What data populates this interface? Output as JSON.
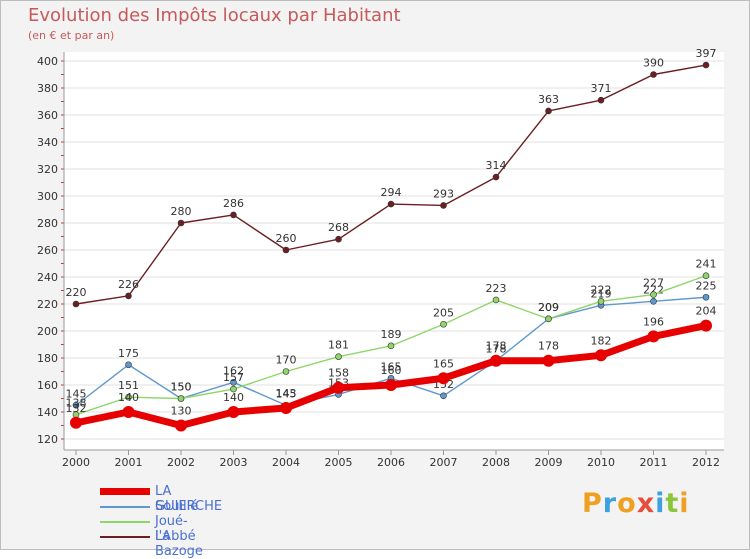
{
  "chart_data": {
    "type": "line",
    "title": "Evolution des Impôts locaux par Habitant",
    "subtitle": "(en € et par an)",
    "xlabel": "",
    "ylabel": "",
    "x": [
      "2000",
      "2001",
      "2002",
      "2003",
      "2004",
      "2005",
      "2006",
      "2007",
      "2008",
      "2009",
      "2010",
      "2011",
      "2012"
    ],
    "ylim": [
      120,
      400
    ],
    "yticks": [
      "120",
      "140",
      "160",
      "180",
      "200",
      "220",
      "240",
      "260",
      "280",
      "300",
      "320",
      "340",
      "360",
      "380",
      "400"
    ],
    "grid": true,
    "series": [
      {
        "name": "La Bazoge",
        "color": "#6b1f22",
        "values": [
          220,
          226,
          280,
          286,
          260,
          268,
          294,
          293,
          314,
          363,
          371,
          390,
          397
        ],
        "labels": [
          "220",
          "226",
          "280",
          "286",
          "260",
          "268",
          "294",
          "293",
          "314",
          "363",
          "371",
          "390",
          "397"
        ]
      },
      {
        "name": "Souillé",
        "color": "#5f98cc",
        "values": [
          145,
          175,
          150,
          162,
          145,
          153,
          165,
          152,
          178,
          209,
          219,
          222,
          225
        ],
        "labels": [
          "145",
          "175",
          "150",
          "162",
          "145",
          "153",
          "165",
          "152",
          "178",
          "209",
          "219",
          "222",
          "225"
        ]
      },
      {
        "name": "Joué-l'Abbé",
        "color": "#8ed66a",
        "values": [
          138,
          151,
          150,
          157,
          170,
          181,
          189,
          205,
          223,
          209,
          222,
          227,
          241
        ],
        "labels": [
          "138",
          "151",
          "150",
          "157",
          "170",
          "181",
          "189",
          "205",
          "223",
          "209",
          "222",
          "227",
          "241"
        ]
      },
      {
        "name": "LA GUIERCHE",
        "color": "#e60000",
        "values": [
          132,
          140,
          130,
          140,
          143,
          158,
          160,
          165,
          178,
          178,
          182,
          196,
          204
        ],
        "labels": [
          "132",
          "140",
          "130",
          "140",
          "143",
          "158",
          "160",
          "165",
          "178",
          "178",
          "182",
          "196",
          "204"
        ]
      }
    ],
    "legend": [
      "LA GUIERCHE",
      "Souillé",
      "Joué-l'Abbé",
      "La Bazoge"
    ],
    "legend_position": "bottom-left"
  },
  "brand": {
    "text": "Proxiti",
    "letters": [
      "P",
      "r",
      "o",
      "x",
      "i",
      "t",
      "i"
    ],
    "colors": [
      "#f0a020",
      "#3da0e0",
      "#f0a020",
      "#e84d3c",
      "#3da0e0",
      "#8cc63f",
      "#f0a020"
    ]
  }
}
